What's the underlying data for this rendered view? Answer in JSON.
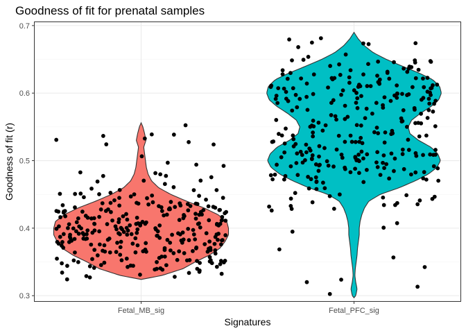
{
  "chart_data": {
    "type": "violin",
    "title": "Goodness of fit for prenatal samples",
    "xlabel": "Signatures",
    "ylabel": "Goodness of fit (r)",
    "categories": [
      "Fetal_MB_sig",
      "Fetal_PFC_sig"
    ],
    "yticks": [
      0.3,
      0.4,
      0.5,
      0.6,
      0.7
    ],
    "ytick_labels": [
      "0.3",
      "0.4",
      "0.5",
      "0.6",
      "0.7"
    ],
    "ylim": [
      0.292,
      0.705
    ],
    "grid": true,
    "legend": "none",
    "series": [
      {
        "category": "Fetal_MB_sig",
        "color": "#F8766D",
        "range": [
          0.324,
          0.556
        ],
        "density_profile": [
          [
            0.324,
            0.0
          ],
          [
            0.33,
            0.24
          ],
          [
            0.34,
            0.48
          ],
          [
            0.35,
            0.62
          ],
          [
            0.36,
            0.78
          ],
          [
            0.37,
            0.9
          ],
          [
            0.38,
            0.96
          ],
          [
            0.39,
            1.0
          ],
          [
            0.4,
            1.0
          ],
          [
            0.41,
            0.98
          ],
          [
            0.42,
            0.88
          ],
          [
            0.43,
            0.72
          ],
          [
            0.44,
            0.52
          ],
          [
            0.45,
            0.34
          ],
          [
            0.46,
            0.2
          ],
          [
            0.47,
            0.12
          ],
          [
            0.48,
            0.08
          ],
          [
            0.49,
            0.06
          ],
          [
            0.5,
            0.05
          ],
          [
            0.51,
            0.04
          ],
          [
            0.52,
            0.03
          ],
          [
            0.53,
            0.055
          ],
          [
            0.54,
            0.04
          ],
          [
            0.55,
            0.02
          ],
          [
            0.556,
            0.0
          ]
        ],
        "n_points": 300
      },
      {
        "category": "Fetal_PFC_sig",
        "color": "#00BFC4",
        "range": [
          0.297,
          0.69
        ],
        "density_profile": [
          [
            0.297,
            0.0
          ],
          [
            0.3,
            0.02
          ],
          [
            0.31,
            0.035
          ],
          [
            0.32,
            0.02
          ],
          [
            0.33,
            0.01
          ],
          [
            0.34,
            0.015
          ],
          [
            0.35,
            0.025
          ],
          [
            0.36,
            0.035
          ],
          [
            0.37,
            0.04
          ],
          [
            0.38,
            0.05
          ],
          [
            0.39,
            0.06
          ],
          [
            0.4,
            0.06
          ],
          [
            0.41,
            0.07
          ],
          [
            0.42,
            0.09
          ],
          [
            0.43,
            0.12
          ],
          [
            0.44,
            0.17
          ],
          [
            0.45,
            0.3
          ],
          [
            0.46,
            0.52
          ],
          [
            0.47,
            0.7
          ],
          [
            0.48,
            0.85
          ],
          [
            0.49,
            0.95
          ],
          [
            0.5,
            0.99
          ],
          [
            0.51,
            0.96
          ],
          [
            0.52,
            0.88
          ],
          [
            0.53,
            0.74
          ],
          [
            0.54,
            0.64
          ],
          [
            0.55,
            0.62
          ],
          [
            0.56,
            0.66
          ],
          [
            0.57,
            0.76
          ],
          [
            0.58,
            0.88
          ],
          [
            0.59,
            0.97
          ],
          [
            0.6,
            1.0
          ],
          [
            0.61,
            0.98
          ],
          [
            0.62,
            0.9
          ],
          [
            0.63,
            0.74
          ],
          [
            0.64,
            0.55
          ],
          [
            0.65,
            0.37
          ],
          [
            0.66,
            0.22
          ],
          [
            0.67,
            0.12
          ],
          [
            0.68,
            0.05
          ],
          [
            0.69,
            0.0
          ]
        ],
        "n_points": 300
      }
    ],
    "point_color": "#000000"
  }
}
